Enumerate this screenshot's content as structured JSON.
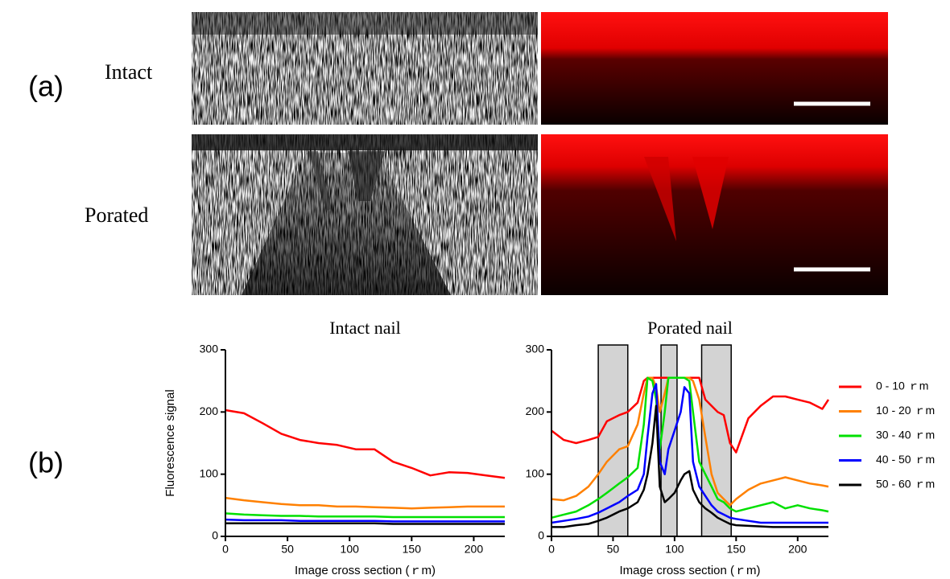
{
  "panel_labels": [
    "(a)",
    "(b)"
  ],
  "row_labels": [
    "Intact",
    "Porated"
  ],
  "chart_data": [
    {
      "type": "line",
      "title": "Intact nail",
      "x_label": "Image cross section (ｒm)",
      "y_label": "Fluorescence signal",
      "x": [
        0,
        15,
        30,
        45,
        60,
        75,
        90,
        105,
        120,
        135,
        150,
        165,
        180,
        195,
        210,
        225
      ],
      "xlim": [
        0,
        225
      ],
      "xticks": [
        0,
        50,
        100,
        150,
        200
      ],
      "ylim": [
        0,
        300
      ],
      "yticks": [
        0,
        100,
        200,
        300
      ],
      "series": [
        {
          "color": "#ff0000",
          "values": [
            203,
            198,
            182,
            165,
            155,
            150,
            147,
            140,
            140,
            120,
            110,
            98,
            103,
            102,
            98,
            94
          ]
        },
        {
          "color": "#ff8000",
          "values": [
            62,
            58,
            55,
            52,
            50,
            50,
            48,
            48,
            47,
            46,
            45,
            46,
            47,
            48,
            48,
            48
          ]
        },
        {
          "color": "#00e000",
          "values": [
            37,
            35,
            34,
            33,
            33,
            32,
            32,
            32,
            32,
            31,
            31,
            31,
            31,
            31,
            31,
            31
          ]
        },
        {
          "color": "#0000ff",
          "values": [
            27,
            26,
            26,
            26,
            25,
            25,
            25,
            25,
            25,
            24,
            24,
            24,
            24,
            24,
            24,
            24
          ]
        },
        {
          "color": "#000000",
          "values": [
            21,
            21,
            21,
            21,
            21,
            21,
            21,
            21,
            21,
            20,
            20,
            20,
            20,
            20,
            20,
            20
          ]
        }
      ]
    },
    {
      "type": "line",
      "title": "Porated nail",
      "x_label": "Image cross section (ｒm)",
      "legend": "right",
      "x": [
        0,
        10,
        20,
        30,
        38,
        45,
        55,
        62,
        70,
        75,
        78,
        82,
        85,
        88,
        92,
        95,
        100,
        105,
        108,
        112,
        115,
        120,
        125,
        130,
        135,
        140,
        145,
        150,
        160,
        170,
        180,
        190,
        200,
        210,
        220,
        225
      ],
      "xlim": [
        0,
        225
      ],
      "xticks": [
        0,
        50,
        100,
        150,
        200
      ],
      "ylim": [
        0,
        300
      ],
      "yticks": [
        0,
        100,
        200,
        300
      ],
      "shaded_regions": [
        [
          38,
          62
        ],
        [
          89,
          102
        ],
        [
          122,
          146
        ]
      ],
      "series": [
        {
          "name": "0 - 10 ｒm",
          "color": "#ff0000",
          "values": [
            170,
            155,
            150,
            155,
            160,
            185,
            195,
            200,
            215,
            250,
            255,
            255,
            255,
            255,
            255,
            255,
            255,
            255,
            255,
            255,
            255,
            255,
            220,
            210,
            200,
            195,
            150,
            135,
            190,
            210,
            225,
            225,
            220,
            215,
            205,
            220
          ]
        },
        {
          "name": "10 - 20 ｒm",
          "color": "#ff8000",
          "values": [
            60,
            58,
            65,
            80,
            100,
            120,
            140,
            145,
            180,
            230,
            255,
            255,
            240,
            200,
            230,
            255,
            255,
            255,
            255,
            255,
            250,
            220,
            160,
            100,
            70,
            60,
            50,
            60,
            75,
            85,
            90,
            95,
            90,
            85,
            82,
            80
          ]
        },
        {
          "name": "30 - 40 ｒm",
          "color": "#00e000",
          "values": [
            30,
            35,
            40,
            50,
            60,
            70,
            85,
            95,
            110,
            180,
            255,
            250,
            220,
            140,
            200,
            255,
            255,
            255,
            255,
            250,
            200,
            120,
            100,
            80,
            60,
            55,
            45,
            40,
            45,
            50,
            55,
            45,
            50,
            45,
            42,
            40
          ]
        },
        {
          "name": "40 - 50 ｒm",
          "color": "#0000ff",
          "values": [
            22,
            25,
            28,
            32,
            38,
            45,
            55,
            65,
            75,
            100,
            160,
            230,
            245,
            120,
            100,
            140,
            170,
            200,
            240,
            230,
            120,
            80,
            65,
            50,
            40,
            35,
            30,
            28,
            25,
            22,
            22,
            22,
            22,
            22,
            22,
            22
          ]
        },
        {
          "name": "50 - 60 ｒm",
          "color": "#000000",
          "values": [
            15,
            15,
            18,
            20,
            25,
            30,
            40,
            45,
            55,
            75,
            100,
            150,
            210,
            80,
            55,
            60,
            70,
            90,
            100,
            105,
            75,
            55,
            45,
            38,
            30,
            25,
            20,
            18,
            17,
            16,
            15,
            15,
            15,
            15,
            15,
            15
          ]
        }
      ]
    }
  ]
}
